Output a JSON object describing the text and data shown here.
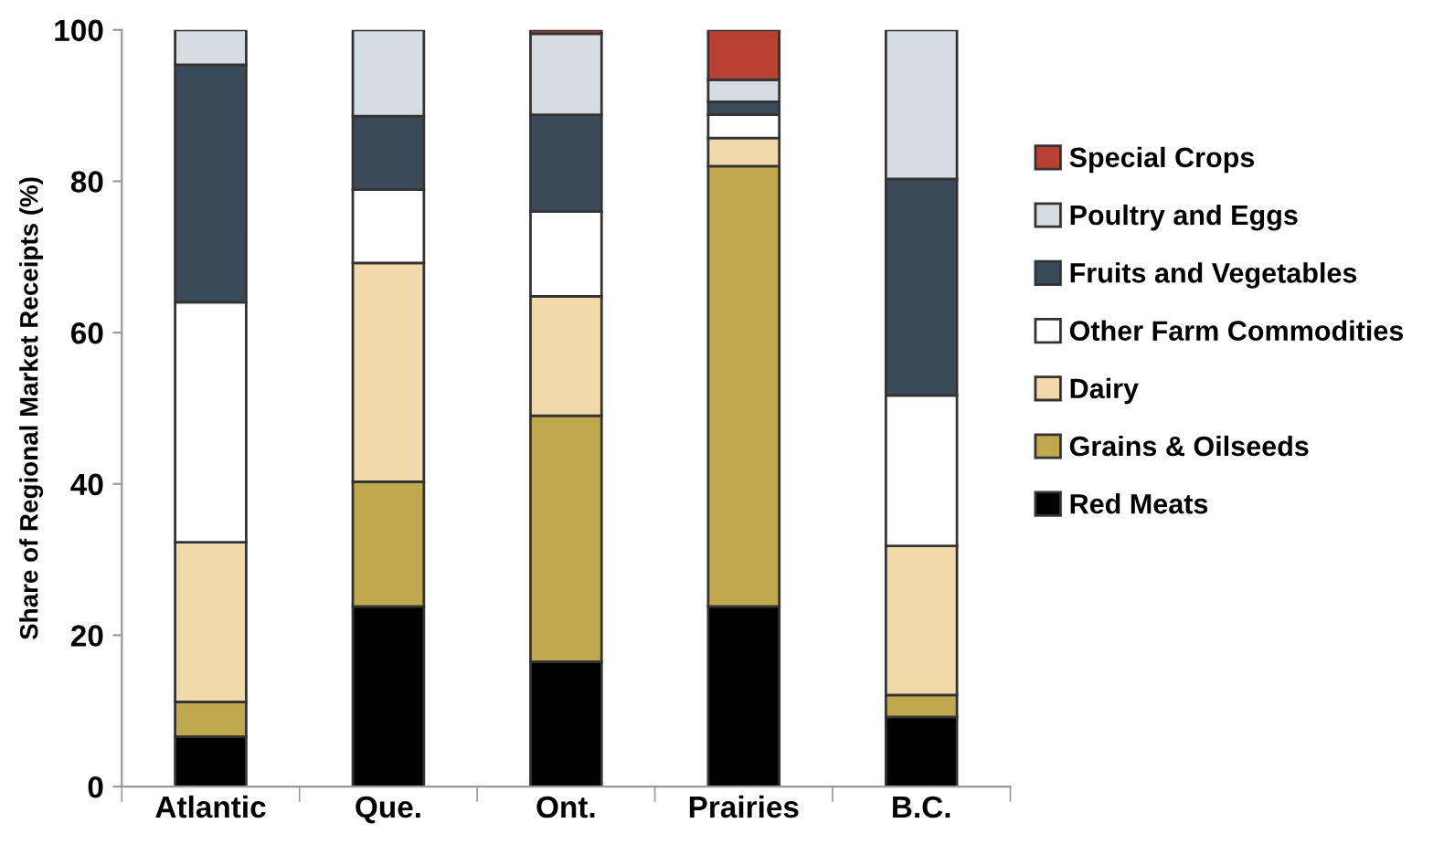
{
  "chart_data": {
    "type": "bar",
    "stacked": true,
    "ylabel": "Share of Regional Market Receipts (%)",
    "categories": [
      "Atlantic",
      "Que.",
      "Ont.",
      "Prairies",
      "B.C."
    ],
    "series": [
      {
        "name": "Red Meats",
        "color": "#000000",
        "values": [
          6.6,
          23.8,
          16.5,
          23.8,
          9.2
        ]
      },
      {
        "name": "Grains & Oilseeds",
        "color": "#c0a84f",
        "values": [
          4.6,
          16.5,
          32.5,
          58.2,
          2.9
        ]
      },
      {
        "name": "Dairy",
        "color": "#f1d9ab",
        "values": [
          21.1,
          28.9,
          15.8,
          3.7,
          19.7
        ]
      },
      {
        "name": "Other Farm Commodities",
        "color": "#ffffff",
        "values": [
          31.7,
          9.7,
          11.2,
          3.1,
          19.9
        ]
      },
      {
        "name": "Fruits and Vegetables",
        "color": "#3a4a58",
        "values": [
          31.4,
          9.7,
          12.8,
          1.7,
          28.6
        ]
      },
      {
        "name": "Poultry and Eggs",
        "color": "#d5dce2",
        "values": [
          4.6,
          11.4,
          10.7,
          2.9,
          19.7
        ]
      },
      {
        "name": "Special Crops",
        "color": "#b94134",
        "values": [
          null,
          null,
          0.5,
          6.6,
          null
        ]
      }
    ],
    "ylim": [
      0,
      100
    ],
    "yticks": [
      0,
      20,
      40,
      60,
      80,
      100
    ],
    "grid": false,
    "legend": "right"
  }
}
